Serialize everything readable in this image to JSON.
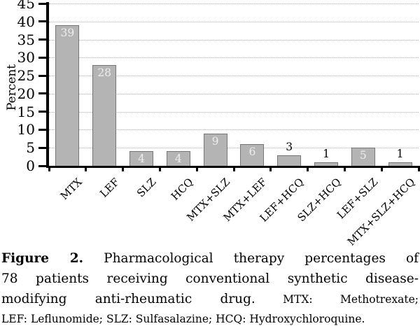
{
  "chart_data": {
    "type": "bar",
    "categories": [
      "MTX",
      "LEF",
      "SLZ",
      "HCQ",
      "MTX+SLZ",
      "MTX+LEF",
      "LEF+HCQ",
      "SLZ+HCQ",
      "LEF+SLZ",
      "MTX+SLZ+HCQ"
    ],
    "values": [
      39,
      28,
      4,
      4,
      9,
      6,
      3,
      1,
      5,
      1
    ],
    "title": "",
    "xlabel": "",
    "ylabel": "Percent",
    "ylim": [
      0,
      45
    ],
    "ytick_step": 5,
    "grid": "horizontal-dotted",
    "legend": "none",
    "bar_fill_color": "#b4b4b4",
    "bar_border_color": "#767676",
    "label_inside_color": "#eeeeee",
    "label_outside_color": "#000000",
    "label_inside_min_value": 4
  },
  "caption": {
    "lines": [
      {
        "justify": true,
        "segments": [
          {
            "text": "Figure 2.",
            "style": "bold"
          },
          {
            "text": " Pharmacological therapy percentages of",
            "style": "normal"
          }
        ]
      },
      {
        "justify": true,
        "segments": [
          {
            "text": "78 patients receiving conventional synthetic disease-",
            "style": "normal"
          }
        ]
      },
      {
        "justify": true,
        "segments": [
          {
            "text": "modifying anti-rheumatic drug.",
            "style": "normal"
          },
          {
            "text": " MTX: Methotrexate;",
            "style": "small"
          }
        ]
      },
      {
        "justify": false,
        "segments": [
          {
            "text": "LEF: Leflunomide; SLZ: Sulfasalazine; HCQ: Hydroxychloroquine.",
            "style": "small"
          }
        ]
      }
    ]
  }
}
